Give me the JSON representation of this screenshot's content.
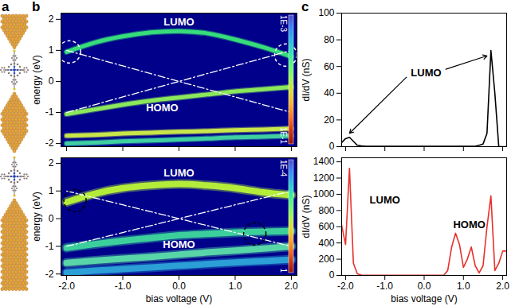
{
  "panel_letters": [
    "a",
    "b",
    "c"
  ],
  "chart_data": [
    {
      "type": "heatmap",
      "x": [
        -2,
        -1.5,
        -1,
        -0.5,
        0,
        0.5,
        1,
        1.5,
        2
      ],
      "xlim": [
        -2.1,
        2.1
      ],
      "xticks": [
        {
          "value": -2,
          "label": "-2.0"
        },
        {
          "value": -1,
          "label": "-1.0"
        },
        {
          "value": 0,
          "label": "0.0"
        },
        {
          "value": 1,
          "label": "1.0"
        },
        {
          "value": 2,
          "label": "2.0"
        }
      ],
      "ylim": [
        -2.1,
        2.2
      ],
      "yticks": [
        -2,
        -1,
        0,
        1,
        2
      ],
      "y_label": "energy (eV)",
      "tick_labels": "y",
      "series": [
        {
          "color": "#36dd7a",
          "values": [
            0.95,
            1.25,
            1.45,
            1.58,
            1.62,
            1.55,
            1.35,
            1.1,
            0.8
          ]
        },
        {
          "color": "#8be85a",
          "values": [
            -1.05,
            -0.9,
            -0.75,
            -0.62,
            -0.52,
            -0.42,
            -0.32,
            -0.25,
            -0.18
          ]
        },
        {
          "color": "#c9e64a",
          "values": [
            -1.75,
            -1.72,
            -1.68,
            -1.65,
            -1.62,
            -1.6,
            -1.57,
            -1.55,
            -1.52
          ]
        },
        {
          "color": "#3fcfa0",
          "values": [
            -2.0,
            -1.97,
            -1.93,
            -1.9,
            -1.87,
            -1.84,
            -1.8,
            -1.78,
            -1.75
          ]
        },
        {
          "color": "#ffffff",
          "line_style": "dashdot",
          "values": [
            1,
            0.75,
            0.5,
            0.25,
            0,
            -0.25,
            -0.5,
            -0.75,
            -1
          ]
        },
        {
          "color": "#ffffff",
          "line_style": "dashdot",
          "values": [
            -1,
            -0.75,
            -0.5,
            -0.25,
            0,
            0.25,
            0.5,
            0.75,
            1
          ]
        }
      ],
      "annotations": [
        {
          "text": "LUMO",
          "x": 0,
          "y": 1.9
        },
        {
          "text": "HOMO",
          "x": -0.3,
          "y": -0.85
        }
      ],
      "circles": {
        "color": "#ffffff",
        "points": [
          [
            -1.95,
            0.95
          ],
          [
            1.9,
            0.85
          ]
        ]
      },
      "colorbar": {
        "range": [
          0.001,
          0.1
        ],
        "ticks": [
          {
            "value": 0.001,
            "label": "1E-3"
          },
          {
            "value": 0.1,
            "label": "1E-1"
          }
        ]
      }
    },
    {
      "type": "heatmap",
      "x": [
        -2,
        -1.5,
        -1,
        -0.5,
        0,
        0.5,
        1,
        1.5,
        2
      ],
      "xlim": [
        -2.1,
        2.1
      ],
      "xticks": [
        {
          "value": -2,
          "label": "-2.0"
        },
        {
          "value": -1,
          "label": "-1.0"
        },
        {
          "value": 0,
          "label": "0.0"
        },
        {
          "value": 1,
          "label": "1.0"
        },
        {
          "value": 2,
          "label": "2.0"
        }
      ],
      "ylim": [
        -2.05,
        2.2
      ],
      "yticks": [
        -2,
        -1,
        0,
        1,
        2
      ],
      "x_label": "bias voltage (V)",
      "y_label": "energy (eV)",
      "series": [
        {
          "color": "#b4ec3a",
          "values": [
            0.6,
            0.9,
            1.1,
            1.2,
            1.25,
            1.2,
            1.1,
            0.95,
            0.85
          ]
        },
        {
          "color": "#3ccf9c",
          "values": [
            -1.05,
            -0.92,
            -0.8,
            -0.7,
            -0.6,
            -0.55,
            -0.5,
            -0.47,
            -0.45
          ]
        },
        {
          "color": "#58d6a8",
          "values": [
            -1.6,
            -1.52,
            -1.45,
            -1.38,
            -1.3,
            -1.22,
            -1.15,
            -1.08,
            -1.0
          ]
        },
        {
          "color": "#2b9fd6",
          "values": [
            -1.95,
            -1.88,
            -1.82,
            -1.76,
            -1.7,
            -1.64,
            -1.58,
            -1.53,
            -1.48
          ]
        },
        {
          "color": "#ffffff",
          "line_style": "dashdot",
          "values": [
            1,
            0.75,
            0.5,
            0.25,
            0,
            -0.25,
            -0.5,
            -0.75,
            -1
          ]
        },
        {
          "color": "#ffffff",
          "line_style": "dashdot",
          "values": [
            -1,
            -0.75,
            -0.5,
            -0.25,
            0,
            0.25,
            0.5,
            0.75,
            1
          ]
        }
      ],
      "annotations": [
        {
          "text": "LUMO",
          "x": 0,
          "y": 1.65
        },
        {
          "text": "HOMO",
          "x": 0,
          "y": -0.95
        }
      ],
      "circles": {
        "color": "#000000",
        "points": [
          [
            -1.85,
            0.65
          ],
          [
            1.35,
            -0.55
          ]
        ]
      },
      "colorbar": {
        "range": [
          0.0001,
          1
        ],
        "ticks": [
          {
            "value": 0.0001,
            "label": "1E-4"
          },
          1
        ]
      }
    },
    {
      "type": "line",
      "x": [
        -2.1,
        -2.0,
        -1.9,
        -1.8,
        -1.7,
        -1.6,
        -1.5,
        -1.4,
        -1.3,
        -1.2,
        -1.1,
        -1.0,
        -0.9,
        -0.8,
        -0.7,
        -0.6,
        -0.5,
        -0.4,
        -0.3,
        -0.2,
        -0.1,
        0.0,
        0.1,
        0.2,
        0.3,
        0.4,
        0.5,
        0.6,
        0.7,
        0.8,
        0.9,
        1.0,
        1.1,
        1.2,
        1.3,
        1.4,
        1.5,
        1.6,
        1.7,
        1.8,
        1.9,
        2.0,
        2.1
      ],
      "xlim": [
        -2.1,
        2.1
      ],
      "xticks": [
        {
          "value": -2,
          "label": "-2.0"
        },
        {
          "value": -1,
          "label": "-1.0"
        },
        {
          "value": 0,
          "label": "0.0"
        },
        {
          "value": 1,
          "label": "1.0"
        },
        {
          "value": 2,
          "label": "2.0"
        }
      ],
      "ylim": [
        0,
        100
      ],
      "yticks": [
        0,
        20,
        40,
        60,
        80,
        100
      ],
      "y_label": "dI/dV (nS)",
      "tick_labels": "y",
      "series": [
        {
          "color": "#000000",
          "values": [
            3,
            6,
            7,
            4,
            1,
            0.5,
            0.3,
            0.3,
            0.3,
            0.3,
            0.3,
            0.3,
            0.3,
            0.3,
            0.3,
            0.3,
            0.3,
            0.3,
            0.3,
            0.3,
            0.3,
            0.2,
            0.3,
            0.3,
            0.3,
            0.3,
            0.3,
            0.3,
            0.3,
            0.3,
            0.3,
            0.3,
            0.3,
            0.3,
            0.3,
            1,
            2,
            10,
            72,
            40,
            0,
            0,
            0
          ]
        }
      ],
      "annotations": [
        {
          "text": "LUMO",
          "x": 0.05,
          "y": 55,
          "arrows": [
            {
              "x1": -0.45,
              "y1": 52,
              "x2": -1.9,
              "y2": 10
            },
            {
              "x1": 0.55,
              "y1": 58,
              "x2": 1.6,
              "y2": 68
            }
          ]
        }
      ]
    },
    {
      "type": "line",
      "x": [
        -2.1,
        -2.0,
        -1.9,
        -1.8,
        -1.7,
        -1.6,
        -1.5,
        -1.4,
        -1.3,
        -1.2,
        -1.1,
        -1.0,
        -0.9,
        -0.8,
        -0.7,
        -0.6,
        -0.5,
        -0.4,
        -0.3,
        -0.2,
        -0.1,
        0.0,
        0.1,
        0.2,
        0.3,
        0.4,
        0.5,
        0.6,
        0.7,
        0.8,
        0.9,
        1.0,
        1.1,
        1.2,
        1.3,
        1.4,
        1.5,
        1.6,
        1.7,
        1.8,
        1.9,
        2.0,
        2.1
      ],
      "xlim": [
        -2.1,
        2.1
      ],
      "xticks": [
        {
          "value": -2,
          "label": "-2.0"
        },
        {
          "value": -1,
          "label": "-1.0"
        },
        {
          "value": 0,
          "label": "0.0"
        },
        {
          "value": 1,
          "label": "1.0"
        },
        {
          "value": 2,
          "label": "2.0"
        }
      ],
      "ylim": [
        0,
        1450
      ],
      "yticks": [
        0,
        200,
        400,
        600,
        800,
        1000,
        1200,
        1400
      ],
      "x_label": "bias voltage (V)",
      "y_label": "dI/dV (nS)",
      "series": [
        {
          "color": "#e8302a",
          "values": [
            620,
            380,
            1320,
            150,
            20,
            5,
            2,
            2,
            2,
            2,
            2,
            2,
            2,
            2,
            2,
            2,
            2,
            2,
            2,
            2,
            2,
            2,
            3,
            3,
            3,
            3,
            3,
            60,
            350,
            520,
            380,
            100,
            200,
            350,
            120,
            30,
            120,
            600,
            980,
            60,
            150,
            300,
            300
          ]
        }
      ],
      "annotations": [
        {
          "text": "LUMO",
          "x": -1.0,
          "y": 930
        },
        {
          "text": "HOMO",
          "x": 1.15,
          "y": 620
        }
      ]
    }
  ]
}
